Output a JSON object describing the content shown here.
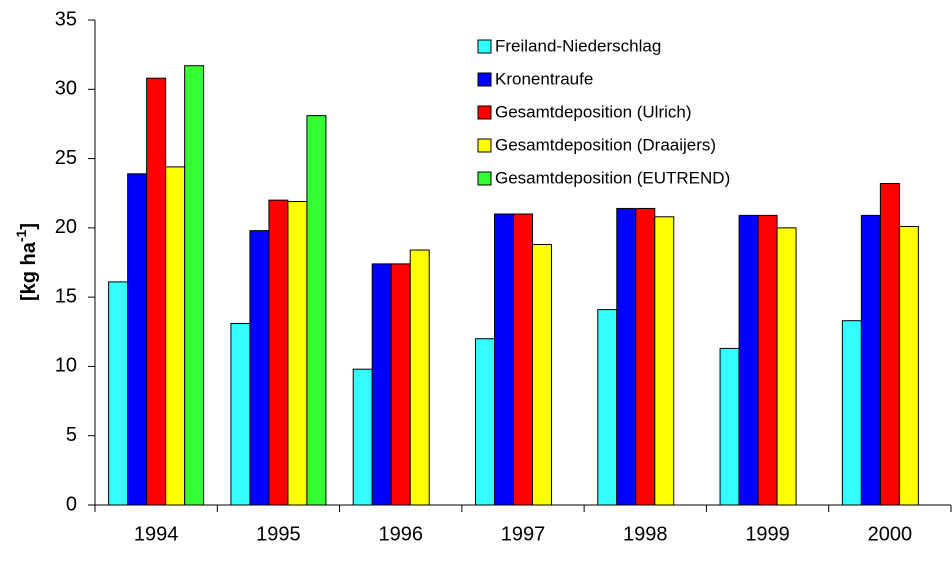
{
  "chart_data": {
    "type": "bar",
    "y_label": [
      "[kg ha",
      "-1",
      "]"
    ],
    "categories": [
      "1994",
      "1995",
      "1996",
      "1997",
      "1998",
      "1999",
      "2000"
    ],
    "series": [
      {
        "name": "Freiland-Niederschlag",
        "color": "#33ffff",
        "values": [
          16.1,
          13.1,
          9.8,
          12.0,
          14.1,
          11.3,
          13.3
        ]
      },
      {
        "name": "Kronentraufe",
        "color": "#0000ff",
        "values": [
          23.9,
          19.8,
          17.4,
          21.0,
          21.4,
          20.9,
          20.9
        ]
      },
      {
        "name": "Gesamtdeposition (Ulrich)",
        "color": "#ff0000",
        "values": [
          30.8,
          22.0,
          17.4,
          21.0,
          21.4,
          20.9,
          23.2
        ]
      },
      {
        "name": "Gesamtdeposition (Draaijers)",
        "color": "#ffff00",
        "values": [
          24.4,
          21.9,
          18.4,
          18.8,
          20.8,
          20.0,
          20.1
        ]
      },
      {
        "name": "Gesamtdeposition (EUTREND)",
        "color": "#33ff33",
        "values": [
          31.7,
          28.1,
          null,
          null,
          null,
          null,
          null
        ]
      }
    ],
    "ylim": [
      0,
      35
    ],
    "yticks": [
      0,
      5,
      10,
      15,
      20,
      25,
      30,
      35
    ],
    "grid": false,
    "legend": "top"
  }
}
